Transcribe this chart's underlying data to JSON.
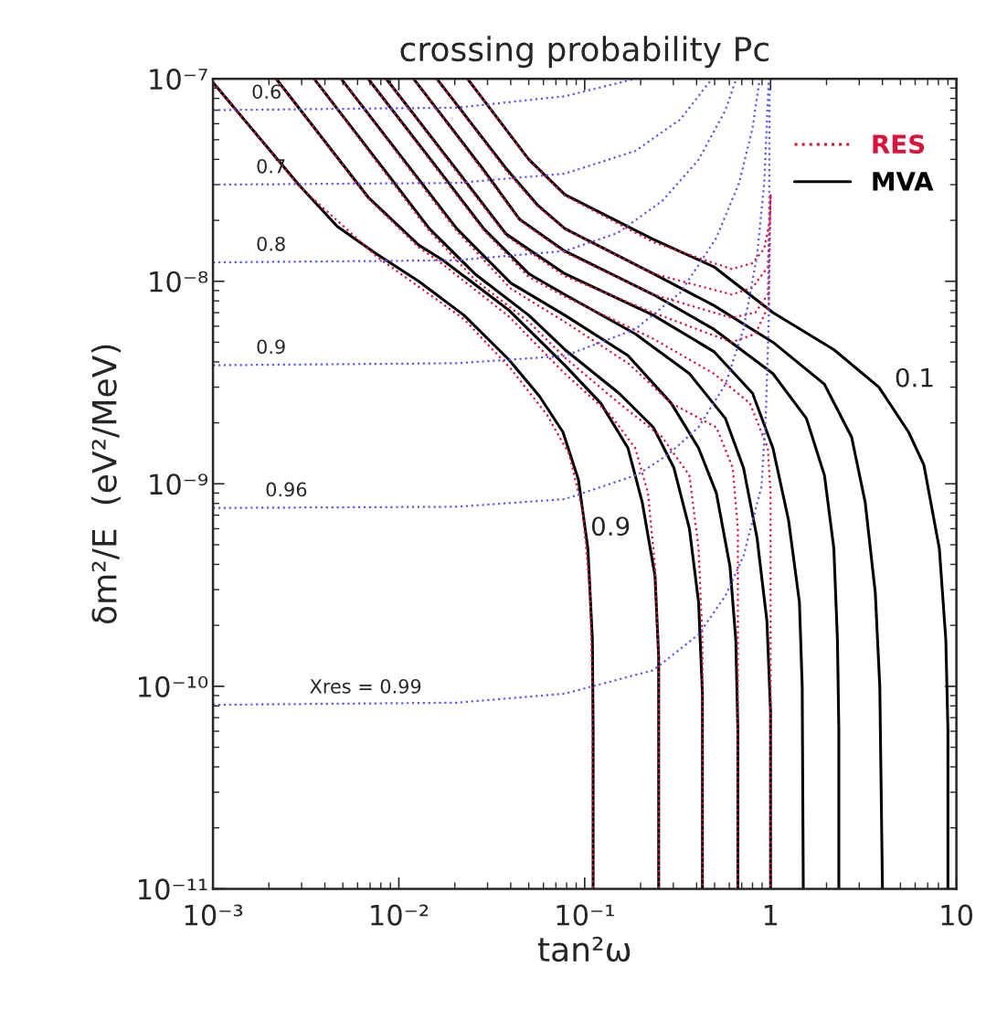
{
  "chart_data": {
    "type": "line",
    "title": "crossing probability Pc",
    "xlabel": "tan²ω",
    "ylabel": "δm²/E  (eV²/MeV)",
    "log": "xy",
    "grid": false,
    "legend": "top right",
    "xlim": [
      0.001,
      10
    ],
    "ylim": [
      1e-11,
      1e-07
    ],
    "xticks": [
      {
        "value": 0.001,
        "label": "10⁻³"
      },
      {
        "value": 0.01,
        "label": "10⁻²"
      },
      {
        "value": 0.1,
        "label": "10⁻¹"
      },
      1,
      10
    ],
    "yticks": [
      {
        "value": 1e-11,
        "label": "10⁻¹¹"
      },
      {
        "value": 1e-10,
        "label": "10⁻¹⁰"
      },
      {
        "value": 1e-09,
        "label": "10⁻⁹"
      },
      {
        "value": 1e-08,
        "label": "10⁻⁸"
      },
      {
        "value": 1e-07,
        "label": "10⁻⁷"
      }
    ],
    "annotations": [
      {
        "text": "0.6",
        "x": 0.00156,
        "y": 7e-08
      },
      {
        "text": "0.7",
        "x": 0.00165,
        "y": 3e-08
      },
      {
        "text": "0.8",
        "x": 0.00165,
        "y": 1.24e-08
      },
      {
        "text": "0.9",
        "x": 0.00165,
        "y": 3.85e-09
      },
      {
        "text": "0.96",
        "x": 0.00185,
        "y": 7.6e-10
      },
      {
        "text": "Xres = 0.99",
        "x": 0.0032,
        "y": 8.1e-11
      },
      {
        "text": "0.9",
        "x": 0.104,
        "y": 4.8e-10
      },
      {
        "text": "0.1",
        "x": 4.5,
        "y": 2.6e-09
      }
    ],
    "series": [
      {
        "color": "#5a5ae6",
        "line_style": "dotted",
        "x": [
          0.001,
          0.0205,
          0.0782,
          0.234,
          0.409,
          0.572,
          0.715,
          0.894,
          0.945,
          0.978,
          0.989
        ],
        "values": [
          8.1e-11,
          8.3e-11,
          9.2e-11,
          1.2e-10,
          1.8e-10,
          2.8e-10,
          4.4e-10,
          9.7e-10,
          2.3e-09,
          6.5e-09,
          1e-07
        ]
      },
      {
        "color": "#5a5ae6",
        "line_style": "dotted",
        "x": [
          0.001,
          0.0205,
          0.0782,
          0.193,
          0.283,
          0.409,
          0.572,
          0.715,
          0.846,
          0.925,
          0.978
        ],
        "values": [
          7.6e-10,
          7.7e-10,
          8.4e-10,
          1.11e-09,
          1.4e-09,
          1.9e-09,
          3.1e-09,
          5.8e-09,
          1.34e-08,
          3.06e-08,
          1e-07
        ]
      },
      {
        "color": "#5a5ae6",
        "line_style": "dotted",
        "x": [
          0.001,
          0.0205,
          0.0782,
          0.187,
          0.327,
          0.511,
          0.677,
          0.8,
          0.874
        ],
        "values": [
          3.85e-09,
          3.94e-09,
          4.28e-09,
          5.8e-09,
          8.8e-09,
          1.64e-08,
          3.06e-08,
          5.7e-08,
          1e-07
        ]
      },
      {
        "color": "#5a5ae6",
        "line_style": "dotted",
        "x": [
          0.001,
          0.0205,
          0.0782,
          0.15,
          0.261,
          0.409,
          0.572,
          0.654
        ],
        "values": [
          1.24e-08,
          1.27e-08,
          1.41e-08,
          1.73e-08,
          2.49e-08,
          3.97e-08,
          7e-08,
          1e-07
        ]
      },
      {
        "color": "#5a5ae6",
        "line_style": "dotted",
        "x": [
          0.001,
          0.0205,
          0.0782,
          0.187,
          0.327,
          0.484
        ],
        "values": [
          3e-08,
          3.06e-08,
          3.4e-08,
          4.4e-08,
          6.3e-08,
          1e-07
        ]
      },
      {
        "color": "#5a5ae6",
        "line_style": "dotted",
        "x": [
          0.001,
          0.0205,
          0.0782,
          0.187
        ],
        "values": [
          7e-08,
          7.2e-08,
          8.2e-08,
          1e-07
        ]
      },
      {
        "name": "RES",
        "color": "#d8143c",
        "line_style": "dotted",
        "x": [
          0.001,
          0.00289,
          0.00764,
          0.0224,
          0.04,
          0.0625,
          0.0826,
          0.0977,
          0.107,
          0.11,
          0.111
        ],
        "values": [
          9.6e-08,
          2.97e-08,
          1.32e-08,
          6.5e-09,
          3.7e-09,
          2.2e-09,
          1.4e-09,
          7.3e-10,
          2.9e-10,
          1e-10,
          1e-11
        ]
      },
      {
        "color": "#d8143c",
        "line_style": "dotted",
        "x": [
          0.00219,
          0.00684,
          0.0128,
          0.0173,
          0.0391,
          0.0782,
          0.137,
          0.187,
          0.219,
          0.239,
          0.25,
          0.25
        ],
        "values": [
          1e-07,
          2.57e-08,
          1.47e-08,
          1.21e-08,
          6.7e-09,
          3.5e-09,
          2.2e-09,
          1.5e-09,
          9e-10,
          3.9e-10,
          1.4e-10,
          1e-11
        ]
      },
      {
        "color": "#d8143c",
        "line_style": "dotted",
        "x": [
          0.0035,
          0.00836,
          0.0146,
          0.0256,
          0.05,
          0.0782,
          0.153,
          0.261,
          0.366,
          0.41,
          0.43,
          0.43
        ],
        "values": [
          1e-07,
          3.47e-08,
          1.77e-08,
          1.02e-08,
          6.3e-09,
          4.2e-09,
          2.5e-09,
          1.7e-09,
          1.1e-09,
          4.8e-10,
          1.7e-10,
          1e-11
        ]
      },
      {
        "color": "#d8143c",
        "line_style": "dotted",
        "x": [
          0.00489,
          0.0117,
          0.0205,
          0.04,
          0.0782,
          0.171,
          0.292,
          0.511,
          0.626,
          0.667,
          0.667
        ],
        "values": [
          1e-07,
          3.47e-08,
          1.77e-08,
          9.2e-09,
          6.3e-09,
          3.94e-09,
          2.5e-09,
          1.9e-09,
          1.2e-09,
          6e-10,
          1e-11
        ]
      },
      {
        "color": "#d8143c",
        "line_style": "dotted",
        "x": [
          0.00684,
          0.0164,
          0.0286,
          0.05,
          0.0782,
          0.234,
          0.495,
          0.774,
          0.967,
          1,
          1
        ],
        "values": [
          1e-07,
          3.47e-08,
          1.79e-08,
          1.05e-08,
          8.4e-09,
          5.2e-09,
          3.5e-09,
          2.5e-09,
          1.5e-09,
          9e-10,
          1e-11
        ]
      },
      {
        "color": "#d8143c",
        "line_style": "dotted",
        "x": [
          0.00855,
          0.0205,
          0.0378,
          0.0782,
          0.234,
          0.618,
          0.827,
          0.978,
          1
        ],
        "values": [
          1e-07,
          3.47e-08,
          1.68e-08,
          1.06e-08,
          7e-09,
          5e-09,
          5.5e-09,
          7.6e-09,
          2.7e-08
        ]
      },
      {
        "color": "#d8143c",
        "line_style": "dotted",
        "x": [
          0.012,
          0.0286,
          0.0447,
          0.0782,
          0.234,
          0.618,
          0.827,
          0.967,
          1
        ],
        "values": [
          1e-07,
          3.47e-08,
          2e-08,
          1.39e-08,
          8.6e-09,
          6.6e-09,
          7e-09,
          8.6e-09,
          2.7e-08
        ]
      },
      {
        "color": "#d8143c",
        "line_style": "dotted",
        "x": [
          0.016,
          0.0383,
          0.056,
          0.0782,
          0.234,
          0.618,
          0.8,
          0.967,
          1
        ],
        "values": [
          1e-07,
          3.47e-08,
          2.34e-08,
          1.81e-08,
          1.09e-08,
          8.6e-09,
          9.3e-09,
          1.18e-08,
          2.7e-08
        ]
      },
      {
        "color": "#d8143c",
        "line_style": "dotted",
        "x": [
          0.0234,
          0.05,
          0.0782,
          0.234,
          0.495,
          0.618,
          0.8,
          0.925,
          0.99,
          1
        ],
        "values": [
          1e-07,
          3.97e-08,
          2.65e-08,
          1.56e-08,
          1.23e-08,
          1.15e-08,
          1.23e-08,
          1.45e-08,
          1.98e-08,
          2.7e-08
        ]
      },
      {
        "name": "MVA",
        "color": "#000000",
        "line_style": "solid",
        "x": [
          0.001,
          0.00289,
          0.00468,
          0.00764,
          0.0128,
          0.0224,
          0.0391,
          0.0572,
          0.0764,
          0.0925,
          0.104,
          0.11,
          0.111,
          0.111
        ],
        "values": [
          9.6e-08,
          3e-08,
          1.86e-08,
          1.36e-08,
          1e-08,
          6.8e-09,
          4.1e-09,
          2.7e-09,
          1.8e-09,
          1.05e-09,
          4.8e-10,
          1.7e-10,
          6.1e-11,
          1e-11
        ]
      },
      {
        "color": "#000000",
        "line_style": "solid",
        "x": [
          0.00219,
          0.00684,
          0.0128,
          0.0173,
          0.0391,
          0.0782,
          0.122,
          0.171,
          0.204,
          0.239,
          0.25,
          0.25
        ],
        "values": [
          1e-07,
          2.6e-08,
          1.51e-08,
          1.27e-08,
          7.2e-09,
          3.85e-09,
          2.5e-09,
          1.5e-09,
          8.1e-10,
          3.5e-10,
          1.4e-10,
          1e-11
        ]
      },
      {
        "color": "#000000",
        "line_style": "solid",
        "x": [
          0.0035,
          0.00836,
          0.0146,
          0.0256,
          0.05,
          0.0782,
          0.153,
          0.234,
          0.302,
          0.366,
          0.41,
          0.43,
          0.43
        ],
        "values": [
          1e-07,
          3.55e-08,
          1.82e-08,
          1.09e-08,
          6.8e-09,
          4.6e-09,
          2.8e-09,
          1.9e-09,
          1.2e-09,
          6e-10,
          2.6e-10,
          9.2e-11,
          1e-11
        ]
      },
      {
        "color": "#000000",
        "line_style": "solid",
        "x": [
          0.00489,
          0.0117,
          0.0205,
          0.04,
          0.0782,
          0.171,
          0.292,
          0.41,
          0.511,
          0.605,
          0.65,
          0.667,
          0.667
        ],
        "values": [
          1e-07,
          3.55e-08,
          1.82e-08,
          9.8e-09,
          6.8e-09,
          4.3e-09,
          2.5e-09,
          1.5e-09,
          9e-10,
          3.9e-10,
          1.7e-10,
          6.1e-11,
          1e-11
        ]
      },
      {
        "color": "#000000",
        "line_style": "solid",
        "x": [
          0.00684,
          0.0164,
          0.0286,
          0.05,
          0.0782,
          0.187,
          0.366,
          0.572,
          0.715,
          0.846,
          0.956,
          1,
          1
        ],
        "values": [
          1e-07,
          3.55e-08,
          1.82e-08,
          1.09e-08,
          8.6e-09,
          5.5e-09,
          3.5e-09,
          2.1e-09,
          1.2e-09,
          5.4e-10,
          2.1e-10,
          7.5e-11,
          1e-11
        ]
      },
      {
        "color": "#000000",
        "line_style": "solid",
        "x": [
          0.00855,
          0.0205,
          0.0378,
          0.0782,
          0.234,
          0.495,
          0.8,
          1.03,
          1.25,
          1.43,
          1.48,
          1.5
        ],
        "values": [
          1e-07,
          3.55e-08,
          1.71e-08,
          1.09e-08,
          6.8e-09,
          4.5e-09,
          2.8e-09,
          1.5e-09,
          6.6e-10,
          2.6e-10,
          1e-10,
          1e-11
        ]
      },
      {
        "color": "#000000",
        "line_style": "solid",
        "x": [
          0.012,
          0.0286,
          0.0447,
          0.0782,
          0.234,
          0.495,
          1.03,
          1.56,
          1.95,
          2.19,
          2.29,
          2.33,
          2.33
        ],
        "values": [
          1e-07,
          3.55e-08,
          2.02e-08,
          1.41e-08,
          8.6e-09,
          5.8e-09,
          3.5e-09,
          2.1e-09,
          1.1e-09,
          4.8e-10,
          1.7e-10,
          6.1e-11,
          1e-11
        ]
      },
      {
        "color": "#000000",
        "line_style": "solid",
        "x": [
          0.016,
          0.0383,
          0.056,
          0.0782,
          0.234,
          0.495,
          1.03,
          1.95,
          2.73,
          3.23,
          3.66,
          3.87,
          4
        ],
        "values": [
          1e-07,
          3.55e-08,
          2.37e-08,
          1.82e-08,
          1.09e-08,
          7.6e-09,
          5e-09,
          3.1e-09,
          1.7e-09,
          8.1e-10,
          2.9e-10,
          1e-10,
          1e-11
        ]
      },
      {
        "color": "#000000",
        "line_style": "solid",
        "x": [
          0.0234,
          0.05,
          0.0782,
          0.234,
          0.495,
          1.03,
          2.19,
          3.83,
          5.53,
          6.68,
          8.09,
          8.77,
          9,
          9
        ],
        "values": [
          1e-07,
          4e-08,
          2.68e-08,
          1.61e-08,
          1.18e-08,
          7e-09,
          4.6e-09,
          3e-09,
          1.8e-09,
          1.24e-09,
          4.8e-10,
          1.7e-10,
          6.1e-11,
          1e-11
        ]
      }
    ]
  }
}
